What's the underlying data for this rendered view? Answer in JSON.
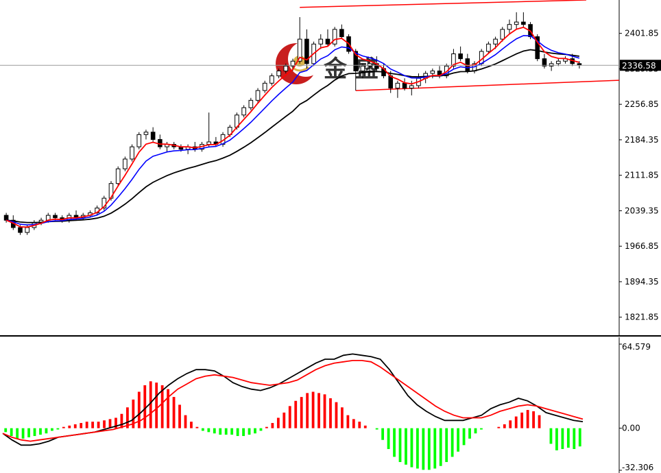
{
  "colors": {
    "background": "#ffffff",
    "bull_candle": "#ffffff",
    "bear_candle": "#000000",
    "ma_fast": "#ff0000",
    "ma_mid": "#0000ff",
    "ma_slow": "#000000",
    "channel": "#ff0000",
    "macd_line": "#000000",
    "signal_line": "#ff0000",
    "hist_positive": "#ff0000",
    "hist_negative": "#00ff00",
    "current_price_line": "#999999"
  },
  "logo": {
    "text": "金 盛",
    "icon": "gold-ingot-logo-icon"
  },
  "current_price": {
    "label": "2336.58",
    "value": 2336.58
  },
  "chart_data": [
    {
      "type": "candlestick",
      "title": "",
      "xlabel": "",
      "ylabel": "",
      "ylim": [
        1785,
        2470
      ],
      "y_ticks": [
        2401.85,
        2329.35,
        2256.85,
        2184.35,
        2111.85,
        2039.35,
        1966.85,
        1894.35,
        1821.85
      ],
      "y_tick_labels": [
        "2401.85",
        "2329.35",
        "2256.85",
        "2184.35",
        "2111.85",
        "2039.35",
        "1966.85",
        "1894.35",
        "1821.85"
      ],
      "grid": false,
      "candles": [
        [
          2030,
          2035,
          2015,
          2020
        ],
        [
          2020,
          2030,
          2000,
          2005
        ],
        [
          2005,
          2010,
          1990,
          1995
        ],
        [
          1995,
          2010,
          1990,
          2005
        ],
        [
          2005,
          2020,
          2000,
          2015
        ],
        [
          2015,
          2025,
          2010,
          2020
        ],
        [
          2020,
          2035,
          2015,
          2030
        ],
        [
          2030,
          2035,
          2020,
          2025
        ],
        [
          2025,
          2030,
          2015,
          2020
        ],
        [
          2020,
          2035,
          2015,
          2030
        ],
        [
          2030,
          2040,
          2020,
          2025
        ],
        [
          2025,
          2035,
          2020,
          2030
        ],
        [
          2030,
          2040,
          2025,
          2035
        ],
        [
          2035,
          2050,
          2030,
          2045
        ],
        [
          2045,
          2070,
          2040,
          2065
        ],
        [
          2065,
          2100,
          2060,
          2095
        ],
        [
          2095,
          2130,
          2090,
          2125
        ],
        [
          2125,
          2150,
          2120,
          2145
        ],
        [
          2145,
          2175,
          2140,
          2170
        ],
        [
          2170,
          2200,
          2165,
          2195
        ],
        [
          2195,
          2205,
          2185,
          2200
        ],
        [
          2200,
          2210,
          2180,
          2185
        ],
        [
          2185,
          2195,
          2165,
          2170
        ],
        [
          2170,
          2180,
          2160,
          2175
        ],
        [
          2175,
          2180,
          2165,
          2170
        ],
        [
          2170,
          2175,
          2160,
          2165
        ],
        [
          2165,
          2175,
          2155,
          2170
        ],
        [
          2170,
          2180,
          2160,
          2165
        ],
        [
          2165,
          2180,
          2160,
          2175
        ],
        [
          2175,
          2240,
          2170,
          2180
        ],
        [
          2180,
          2190,
          2170,
          2175
        ],
        [
          2175,
          2200,
          2170,
          2195
        ],
        [
          2195,
          2215,
          2190,
          2210
        ],
        [
          2210,
          2240,
          2205,
          2235
        ],
        [
          2235,
          2255,
          2230,
          2250
        ],
        [
          2250,
          2270,
          2245,
          2265
        ],
        [
          2265,
          2290,
          2260,
          2285
        ],
        [
          2285,
          2305,
          2280,
          2300
        ],
        [
          2300,
          2320,
          2295,
          2315
        ],
        [
          2315,
          2330,
          2310,
          2325
        ],
        [
          2325,
          2340,
          2320,
          2335
        ],
        [
          2335,
          2350,
          2325,
          2345
        ],
        [
          2345,
          2435,
          2340,
          2390
        ],
        [
          2390,
          2410,
          2330,
          2340
        ],
        [
          2340,
          2385,
          2335,
          2380
        ],
        [
          2380,
          2400,
          2370,
          2390
        ],
        [
          2390,
          2410,
          2375,
          2380
        ],
        [
          2380,
          2415,
          2375,
          2410
        ],
        [
          2410,
          2420,
          2390,
          2395
        ],
        [
          2395,
          2400,
          2360,
          2365
        ],
        [
          2365,
          2370,
          2285,
          2325
        ],
        [
          2325,
          2340,
          2310,
          2335
        ],
        [
          2335,
          2350,
          2320,
          2340
        ],
        [
          2340,
          2355,
          2325,
          2330
        ],
        [
          2330,
          2340,
          2310,
          2315
        ],
        [
          2315,
          2325,
          2280,
          2290
        ],
        [
          2290,
          2305,
          2270,
          2300
        ],
        [
          2300,
          2310,
          2285,
          2290
        ],
        [
          2290,
          2305,
          2275,
          2295
        ],
        [
          2295,
          2320,
          2290,
          2310
        ],
        [
          2310,
          2325,
          2300,
          2320
        ],
        [
          2320,
          2330,
          2310,
          2325
        ],
        [
          2325,
          2335,
          2310,
          2315
        ],
        [
          2315,
          2340,
          2310,
          2335
        ],
        [
          2335,
          2370,
          2330,
          2360
        ],
        [
          2360,
          2375,
          2345,
          2350
        ],
        [
          2350,
          2360,
          2320,
          2325
        ],
        [
          2325,
          2345,
          2320,
          2340
        ],
        [
          2340,
          2370,
          2335,
          2365
        ],
        [
          2365,
          2385,
          2360,
          2380
        ],
        [
          2380,
          2395,
          2370,
          2390
        ],
        [
          2390,
          2415,
          2385,
          2410
        ],
        [
          2410,
          2430,
          2400,
          2420
        ],
        [
          2420,
          2445,
          2410,
          2425
        ],
        [
          2425,
          2445,
          2415,
          2420
        ],
        [
          2420,
          2425,
          2390,
          2395
        ],
        [
          2395,
          2400,
          2345,
          2350
        ],
        [
          2350,
          2360,
          2330,
          2335
        ],
        [
          2335,
          2345,
          2325,
          2340
        ],
        [
          2340,
          2350,
          2335,
          2345
        ],
        [
          2345,
          2355,
          2340,
          2350
        ],
        [
          2350,
          2360,
          2335,
          2340
        ],
        [
          2340,
          2345,
          2330,
          2337
        ]
      ]
    },
    {
      "type": "bar",
      "title": "",
      "xlabel": "",
      "ylabel": "",
      "ylim": [
        -32.306,
        64.579
      ],
      "y_ticks": [
        64.579,
        0.0,
        -32.306
      ],
      "y_tick_labels": [
        "64.579",
        "0.00",
        "-32.306"
      ],
      "histogram": [
        -3,
        -6,
        -8,
        -8,
        -7,
        -6,
        -5,
        -4,
        -2,
        -1,
        1,
        2,
        3,
        4,
        5,
        5,
        5,
        6,
        7,
        8,
        11,
        16,
        22,
        28,
        33,
        36,
        35,
        33,
        30,
        24,
        18,
        10,
        5,
        1,
        -2,
        -3,
        -4,
        -5,
        -5,
        -5,
        -6,
        -6,
        -5,
        -4,
        -2,
        1,
        4,
        8,
        12,
        17,
        21,
        24,
        27,
        28,
        27,
        26,
        23,
        20,
        16,
        10,
        7,
        5,
        2,
        0,
        -1,
        -9,
        -16,
        -22,
        -26,
        -28,
        -30,
        -31,
        -32,
        -32,
        -31,
        -29,
        -26,
        -22,
        -18,
        -13,
        -8,
        -4,
        -1,
        0,
        0,
        1,
        3,
        6,
        9,
        12,
        14,
        13,
        10,
        0,
        -12,
        -17,
        -16,
        -15,
        -16,
        -14
      ],
      "series": [
        {
          "values": [
            -4,
            -9,
            -13,
            -13,
            -12,
            -10,
            -7,
            -6,
            -5,
            -4,
            -3,
            -1,
            1,
            3,
            6,
            12,
            19,
            27,
            33,
            38,
            42,
            45,
            45,
            44,
            40,
            35,
            32,
            30,
            29,
            31,
            34,
            38,
            42,
            46,
            50,
            53,
            53,
            56,
            57,
            56,
            55,
            53,
            45,
            35,
            25,
            18,
            13,
            9,
            6,
            6,
            6,
            8,
            10,
            15,
            18,
            20,
            23,
            21,
            17,
            12,
            10,
            8,
            6,
            5
          ]
        },
        {
          "values": [
            -4,
            -7,
            -9,
            -10,
            -9,
            -8,
            -7,
            -6,
            -5,
            -4,
            -3,
            -2,
            -1,
            1,
            3,
            6,
            11,
            17,
            24,
            30,
            34,
            38,
            40,
            41,
            40,
            39,
            37,
            35,
            34,
            33,
            34,
            35,
            37,
            41,
            45,
            48,
            50,
            51,
            52,
            52,
            51,
            47,
            42,
            37,
            32,
            27,
            22,
            17,
            13,
            10,
            8,
            8,
            8,
            10,
            13,
            15,
            17,
            18,
            17,
            15,
            13,
            11,
            9,
            7
          ]
        }
      ]
    }
  ]
}
